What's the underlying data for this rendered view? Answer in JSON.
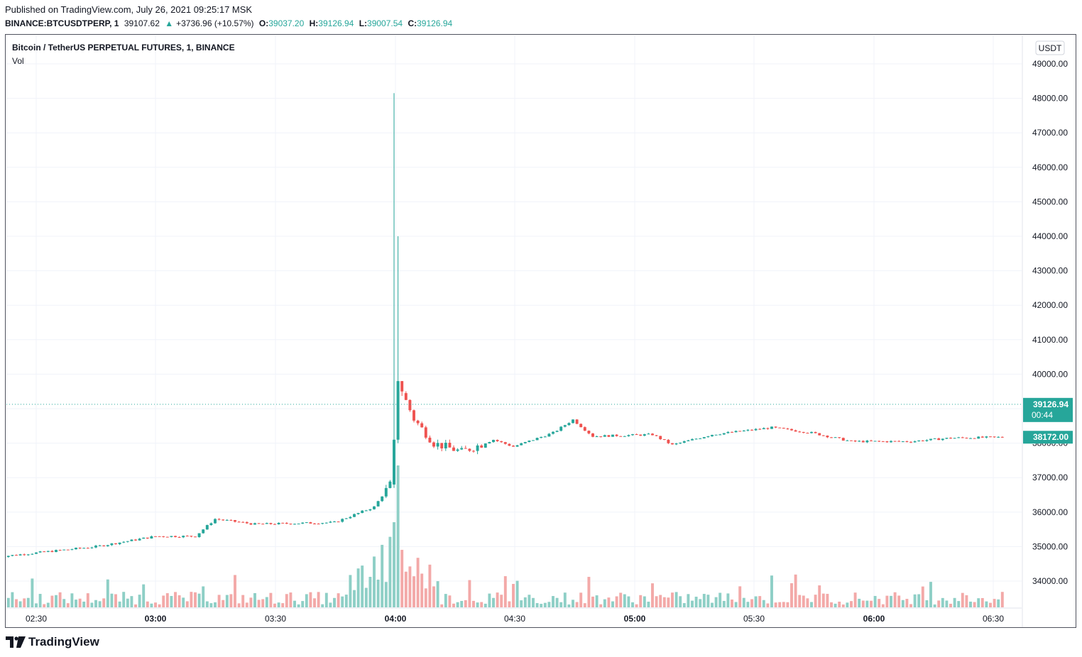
{
  "header": {
    "published": "Published on TradingView.com, July 26, 2021 09:25:17 MSK",
    "symbol": "BINANCE:BTCUSDTPERP, 1",
    "last": "39107.62",
    "change": "+3736.96 (+10.57%)",
    "o_label": "O:",
    "o_value": "39037.20",
    "h_label": "H:",
    "h_value": "39126.94",
    "l_label": "L:",
    "l_value": "39007.54",
    "c_label": "C:",
    "c_value": "39126.94"
  },
  "legend": {
    "title": "Bitcoin / TetherUS PERPETUAL FUTURES, 1, BINANCE",
    "vol": "Vol"
  },
  "brand": {
    "name": "TradingView"
  },
  "colors": {
    "up": "#26a69a",
    "down": "#ef5350",
    "up_vol": "#8ecfc6",
    "down_vol": "#f3a9a8",
    "grid": "#f0f3fa",
    "axis_text": "#131722"
  },
  "chart_data": {
    "type": "candlestick",
    "title": "Bitcoin / TetherUS PERPETUAL FUTURES, 1, BINANCE",
    "currency": "USDT",
    "x_ticks": [
      "02:30",
      "03:00",
      "03:30",
      "04:00",
      "04:30",
      "05:00",
      "05:30",
      "06:00",
      "06:30"
    ],
    "y_ticks": [
      "34000.00",
      "35000.00",
      "36000.00",
      "37000.00",
      "38000.00",
      "39000.00",
      "40000.00",
      "41000.00",
      "42000.00",
      "43000.00",
      "44000.00",
      "45000.00",
      "46000.00",
      "47000.00",
      "48000.00",
      "49000.00"
    ],
    "ylim": [
      33300,
      49300
    ],
    "price_labels": [
      {
        "value": "39126.94",
        "sub": "00:44"
      },
      {
        "value": "38172.00"
      }
    ],
    "keypoints": [
      {
        "time": "02:20",
        "price": 34700
      },
      {
        "time": "02:45",
        "price": 35000
      },
      {
        "time": "03:00",
        "price": 35300
      },
      {
        "time": "03:10",
        "price": 35300
      },
      {
        "time": "03:15",
        "price": 35800
      },
      {
        "time": "03:25",
        "price": 35650
      },
      {
        "time": "03:45",
        "price": 35700
      },
      {
        "time": "03:55",
        "price": 36150
      },
      {
        "time": "03:59",
        "price": 36800
      },
      {
        "time": "04:00",
        "price": 37700,
        "high": 48150
      },
      {
        "time": "04:01",
        "price": 39750,
        "high": 44000
      },
      {
        "time": "04:05",
        "price": 38700
      },
      {
        "time": "04:10",
        "price": 38000
      },
      {
        "time": "04:17",
        "price": 37750
      },
      {
        "time": "04:25",
        "price": 38100
      },
      {
        "time": "04:30",
        "price": 37900
      },
      {
        "time": "04:40",
        "price": 38300
      },
      {
        "time": "04:45",
        "price": 38680
      },
      {
        "time": "04:50",
        "price": 38200
      },
      {
        "time": "05:05",
        "price": 38250
      },
      {
        "time": "05:10",
        "price": 37950
      },
      {
        "time": "05:20",
        "price": 38250
      },
      {
        "time": "05:35",
        "price": 38450
      },
      {
        "time": "05:45",
        "price": 38300
      },
      {
        "time": "05:55",
        "price": 38050
      },
      {
        "time": "06:10",
        "price": 38050
      },
      {
        "time": "06:20",
        "price": 38150
      },
      {
        "time": "06:33",
        "price": 38172
      }
    ],
    "volume": "approximate relative volume bars; peak at 04:00"
  }
}
